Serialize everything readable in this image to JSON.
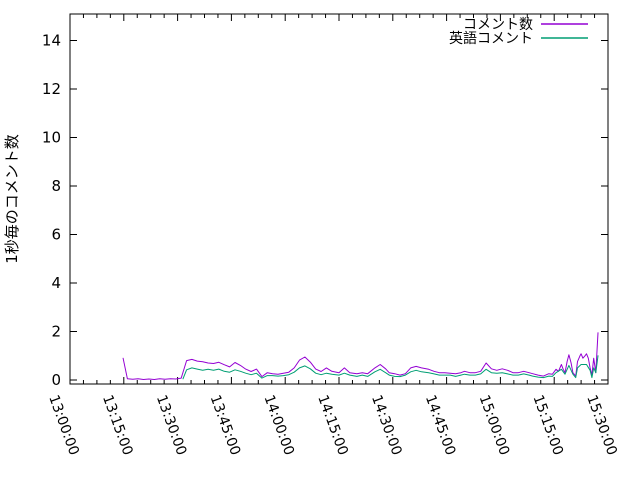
{
  "chart_data": {
    "type": "line",
    "title": "",
    "xlabel": "",
    "ylabel": "1秒毎のコメント数",
    "x_range": [
      0,
      150
    ],
    "x_tick_interval_minutes": 15,
    "x_minor_tick_interval_minutes": 3.75,
    "x_tick_labels": [
      "13:00:00",
      "13:15:00",
      "13:30:00",
      "13:45:00",
      "14:00:00",
      "14:15:00",
      "14:30:00",
      "14:45:00",
      "15:00:00",
      "15:15:00",
      "15:30:00"
    ],
    "ylim": [
      0,
      15
    ],
    "y_ticks": [
      0,
      2,
      4,
      6,
      8,
      10,
      12,
      14
    ],
    "grid": false,
    "legend_position": "top-right-inside",
    "axis_color": "#000000",
    "background_color": "#ffffff",
    "series": [
      {
        "name": "コメント数",
        "color": "#9400d3",
        "points": [
          [
            14.8,
            0.9
          ],
          [
            16,
            0.05
          ],
          [
            17.5,
            0.03
          ],
          [
            19,
            0.05
          ],
          [
            20.5,
            0.02
          ],
          [
            22,
            0.04
          ],
          [
            23.5,
            0.02
          ],
          [
            25,
            0.05
          ],
          [
            26.5,
            0.03
          ],
          [
            28,
            0.05
          ],
          [
            29.5,
            0.04
          ],
          [
            31,
            0.08
          ],
          [
            32.5,
            0.8
          ],
          [
            34,
            0.85
          ],
          [
            35.5,
            0.78
          ],
          [
            37,
            0.75
          ],
          [
            38.5,
            0.7
          ],
          [
            40,
            0.68
          ],
          [
            41.5,
            0.73
          ],
          [
            43,
            0.63
          ],
          [
            44.5,
            0.54
          ],
          [
            46,
            0.72
          ],
          [
            47.5,
            0.6
          ],
          [
            49,
            0.45
          ],
          [
            50.5,
            0.35
          ],
          [
            52,
            0.45
          ],
          [
            53.5,
            0.14
          ],
          [
            55,
            0.3
          ],
          [
            56.5,
            0.26
          ],
          [
            58,
            0.24
          ],
          [
            59.5,
            0.28
          ],
          [
            61,
            0.32
          ],
          [
            62.5,
            0.5
          ],
          [
            64,
            0.82
          ],
          [
            65.5,
            0.95
          ],
          [
            67,
            0.74
          ],
          [
            68.5,
            0.45
          ],
          [
            70,
            0.35
          ],
          [
            71.5,
            0.5
          ],
          [
            73,
            0.36
          ],
          [
            75,
            0.3
          ],
          [
            76.5,
            0.5
          ],
          [
            78,
            0.3
          ],
          [
            80,
            0.26
          ],
          [
            81.5,
            0.3
          ],
          [
            83,
            0.26
          ],
          [
            85,
            0.5
          ],
          [
            86.5,
            0.64
          ],
          [
            88,
            0.46
          ],
          [
            89,
            0.3
          ],
          [
            90.5,
            0.26
          ],
          [
            92,
            0.2
          ],
          [
            93.5,
            0.26
          ],
          [
            95,
            0.5
          ],
          [
            96.5,
            0.56
          ],
          [
            98,
            0.5
          ],
          [
            100,
            0.44
          ],
          [
            101.5,
            0.36
          ],
          [
            103,
            0.3
          ],
          [
            104.5,
            0.3
          ],
          [
            106,
            0.28
          ],
          [
            107.5,
            0.26
          ],
          [
            109,
            0.3
          ],
          [
            110,
            0.36
          ],
          [
            111.5,
            0.3
          ],
          [
            113,
            0.3
          ],
          [
            114.5,
            0.36
          ],
          [
            116,
            0.7
          ],
          [
            117.5,
            0.46
          ],
          [
            119,
            0.4
          ],
          [
            120.5,
            0.46
          ],
          [
            122,
            0.4
          ],
          [
            123.5,
            0.3
          ],
          [
            125,
            0.3
          ],
          [
            126.5,
            0.36
          ],
          [
            128,
            0.3
          ],
          [
            129,
            0.26
          ],
          [
            130.5,
            0.2
          ],
          [
            132,
            0.16
          ],
          [
            133.5,
            0.26
          ],
          [
            134.5,
            0.24
          ],
          [
            135.5,
            0.44
          ],
          [
            136.2,
            0.36
          ],
          [
            137,
            0.64
          ],
          [
            137.5,
            0.44
          ],
          [
            138,
            0.3
          ],
          [
            138.6,
            0.76
          ],
          [
            139.1,
            1.04
          ],
          [
            139.7,
            0.7
          ],
          [
            140.2,
            0.3
          ],
          [
            141,
            0.16
          ],
          [
            141.5,
            0.76
          ],
          [
            142.2,
            1.0
          ],
          [
            142.5,
            1.08
          ],
          [
            143,
            0.9
          ],
          [
            143.6,
            1.0
          ],
          [
            144,
            1.08
          ],
          [
            144.5,
            0.9
          ],
          [
            145,
            0.5
          ],
          [
            145.5,
            0.2
          ],
          [
            146,
            0.9
          ],
          [
            146.6,
            0.3
          ],
          [
            147.2,
            1.95
          ]
        ]
      },
      {
        "name": "英語コメント",
        "color": "#009e73",
        "points": [
          [
            31.5,
            0.05
          ],
          [
            32.5,
            0.42
          ],
          [
            34,
            0.5
          ],
          [
            35.5,
            0.45
          ],
          [
            37,
            0.4
          ],
          [
            38.5,
            0.44
          ],
          [
            40,
            0.4
          ],
          [
            41.5,
            0.45
          ],
          [
            43,
            0.36
          ],
          [
            44.5,
            0.32
          ],
          [
            46,
            0.42
          ],
          [
            47.5,
            0.36
          ],
          [
            49,
            0.28
          ],
          [
            50.5,
            0.22
          ],
          [
            52,
            0.28
          ],
          [
            53.5,
            0.08
          ],
          [
            55,
            0.18
          ],
          [
            56.5,
            0.18
          ],
          [
            58,
            0.16
          ],
          [
            59.5,
            0.18
          ],
          [
            61,
            0.22
          ],
          [
            62.5,
            0.32
          ],
          [
            64,
            0.5
          ],
          [
            65.5,
            0.58
          ],
          [
            67,
            0.46
          ],
          [
            68.5,
            0.28
          ],
          [
            70,
            0.22
          ],
          [
            71.5,
            0.28
          ],
          [
            73,
            0.24
          ],
          [
            75,
            0.2
          ],
          [
            76.5,
            0.28
          ],
          [
            78,
            0.2
          ],
          [
            80,
            0.15
          ],
          [
            81.5,
            0.2
          ],
          [
            83,
            0.15
          ],
          [
            85,
            0.34
          ],
          [
            86.5,
            0.44
          ],
          [
            88,
            0.3
          ],
          [
            89,
            0.2
          ],
          [
            90.5,
            0.15
          ],
          [
            92,
            0.14
          ],
          [
            93.5,
            0.2
          ],
          [
            95,
            0.34
          ],
          [
            96.5,
            0.4
          ],
          [
            98,
            0.34
          ],
          [
            100,
            0.3
          ],
          [
            101.5,
            0.25
          ],
          [
            103,
            0.2
          ],
          [
            104.5,
            0.2
          ],
          [
            106,
            0.2
          ],
          [
            107.5,
            0.15
          ],
          [
            109,
            0.2
          ],
          [
            110,
            0.24
          ],
          [
            111.5,
            0.2
          ],
          [
            113,
            0.2
          ],
          [
            114.5,
            0.25
          ],
          [
            116,
            0.44
          ],
          [
            117.5,
            0.3
          ],
          [
            119,
            0.28
          ],
          [
            120.5,
            0.3
          ],
          [
            122,
            0.25
          ],
          [
            123.5,
            0.2
          ],
          [
            125,
            0.2
          ],
          [
            126.5,
            0.25
          ],
          [
            128,
            0.2
          ],
          [
            129,
            0.16
          ],
          [
            130.5,
            0.12
          ],
          [
            132,
            0.1
          ],
          [
            133.5,
            0.16
          ],
          [
            134.5,
            0.15
          ],
          [
            135.5,
            0.3
          ],
          [
            137,
            0.44
          ],
          [
            138,
            0.24
          ],
          [
            139.1,
            0.6
          ],
          [
            140.2,
            0.24
          ],
          [
            141,
            0.1
          ],
          [
            141.5,
            0.5
          ],
          [
            142.5,
            0.64
          ],
          [
            144,
            0.64
          ],
          [
            145,
            0.4
          ],
          [
            145.5,
            0.1
          ],
          [
            146,
            0.5
          ],
          [
            146.6,
            0.3
          ],
          [
            147.2,
            1.0
          ]
        ]
      }
    ]
  }
}
